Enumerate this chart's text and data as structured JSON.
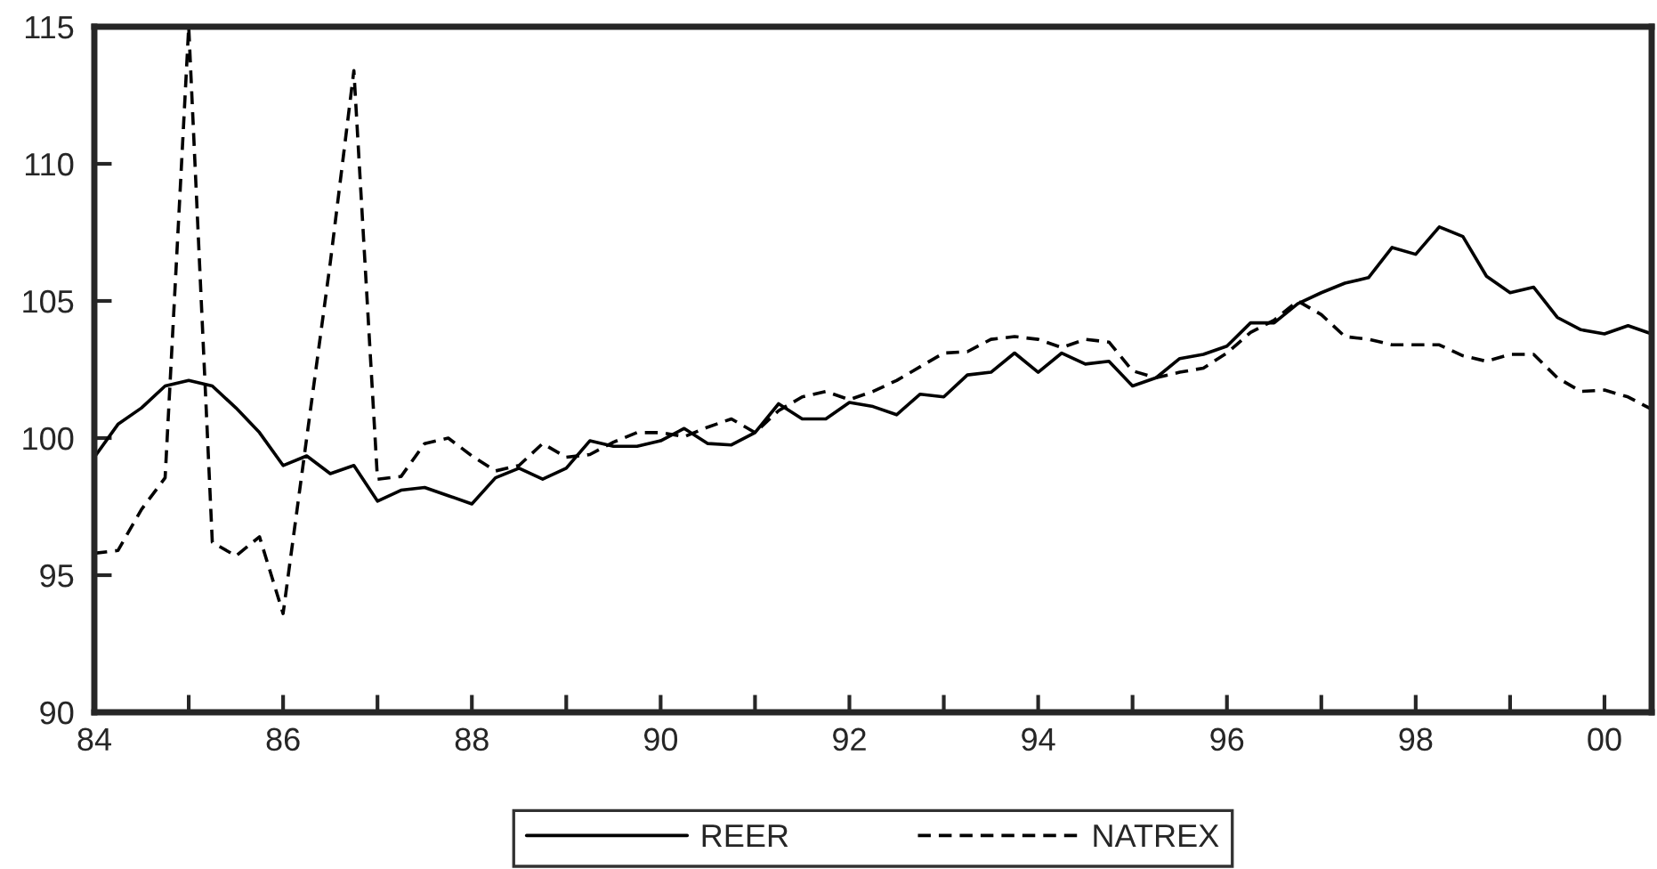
{
  "chart_data": {
    "type": "line",
    "x": [
      1984,
      1984.25,
      1984.5,
      1984.75,
      1985,
      1985.25,
      1985.5,
      1985.75,
      1986,
      1986.25,
      1986.5,
      1986.75,
      1987,
      1987.25,
      1987.5,
      1987.75,
      1988,
      1988.25,
      1988.5,
      1988.75,
      1989,
      1989.25,
      1989.5,
      1989.75,
      1990,
      1990.25,
      1990.5,
      1990.75,
      1991,
      1991.25,
      1991.5,
      1991.75,
      1992,
      1992.25,
      1992.5,
      1992.75,
      1993,
      1993.25,
      1993.5,
      1993.75,
      1994,
      1994.25,
      1994.5,
      1994.75,
      1995,
      1995.25,
      1995.5,
      1995.75,
      1996,
      1996.25,
      1996.5,
      1996.75,
      1997,
      1997.25,
      1997.5,
      1997.75,
      1998,
      1998.25,
      1998.5,
      1998.75,
      1999,
      1999.25,
      1999.5,
      1999.75,
      2000,
      2000.25,
      2000.5
    ],
    "series": [
      {
        "name": "REER",
        "color": "#000000",
        "line_style": "solid",
        "values": [
          99.3,
          100.5,
          101.1,
          101.9,
          102.1,
          101.9,
          101.1,
          100.2,
          99.0,
          99.35,
          98.7,
          99.0,
          97.7,
          98.1,
          98.2,
          97.9,
          97.6,
          98.55,
          98.9,
          98.5,
          98.9,
          99.9,
          99.7,
          99.7,
          99.9,
          100.35,
          99.8,
          99.75,
          100.2,
          101.25,
          100.7,
          100.7,
          101.3,
          101.15,
          100.85,
          101.6,
          101.5,
          102.3,
          102.4,
          103.1,
          102.4,
          103.1,
          102.7,
          102.8,
          101.9,
          102.2,
          102.9,
          103.05,
          103.35,
          104.2,
          104.2,
          104.9,
          105.3,
          105.65,
          105.85,
          106.95,
          106.7,
          107.7,
          107.35,
          105.9,
          105.3,
          105.5,
          104.4,
          103.95,
          103.8,
          104.1,
          103.8
        ]
      },
      {
        "name": "NATREX",
        "color": "#000000",
        "line_style": "dashed",
        "values": [
          95.8,
          95.9,
          97.4,
          98.55,
          115,
          96.2,
          95.7,
          96.4,
          93.6,
          100.0,
          106.4,
          113.4,
          98.5,
          98.6,
          99.8,
          100.0,
          99.35,
          98.8,
          99.0,
          99.8,
          99.3,
          99.4,
          99.85,
          100.2,
          100.2,
          100.05,
          100.4,
          100.7,
          100.2,
          101.0,
          101.5,
          101.7,
          101.4,
          101.7,
          102.1,
          102.6,
          103.1,
          103.15,
          103.6,
          103.7,
          103.6,
          103.3,
          103.6,
          103.5,
          102.45,
          102.2,
          102.4,
          102.55,
          103.1,
          103.85,
          104.3,
          105.0,
          104.5,
          103.7,
          103.6,
          103.4,
          103.4,
          103.4,
          103.0,
          102.8,
          103.05,
          103.05,
          102.2,
          101.7,
          101.75,
          101.5,
          101.05
        ]
      }
    ],
    "xlim": [
      1984,
      2000.5
    ],
    "xticks": [
      {
        "value": 1984,
        "label": "84"
      },
      {
        "value": 1985,
        "label": null
      },
      {
        "value": 1986,
        "label": "86"
      },
      {
        "value": 1987,
        "label": null
      },
      {
        "value": 1988,
        "label": "88"
      },
      {
        "value": 1989,
        "label": null
      },
      {
        "value": 1990,
        "label": "90"
      },
      {
        "value": 1991,
        "label": null
      },
      {
        "value": 1992,
        "label": "92"
      },
      {
        "value": 1993,
        "label": null
      },
      {
        "value": 1994,
        "label": "94"
      },
      {
        "value": 1995,
        "label": null
      },
      {
        "value": 1996,
        "label": "96"
      },
      {
        "value": 1997,
        "label": null
      },
      {
        "value": 1998,
        "label": "98"
      },
      {
        "value": 1999,
        "label": null
      },
      {
        "value": 2000,
        "label": "00"
      }
    ],
    "ylim": [
      90,
      115
    ],
    "yticks": [
      90,
      95,
      100,
      105,
      110,
      115
    ],
    "grid": false,
    "legend": "bottom"
  }
}
